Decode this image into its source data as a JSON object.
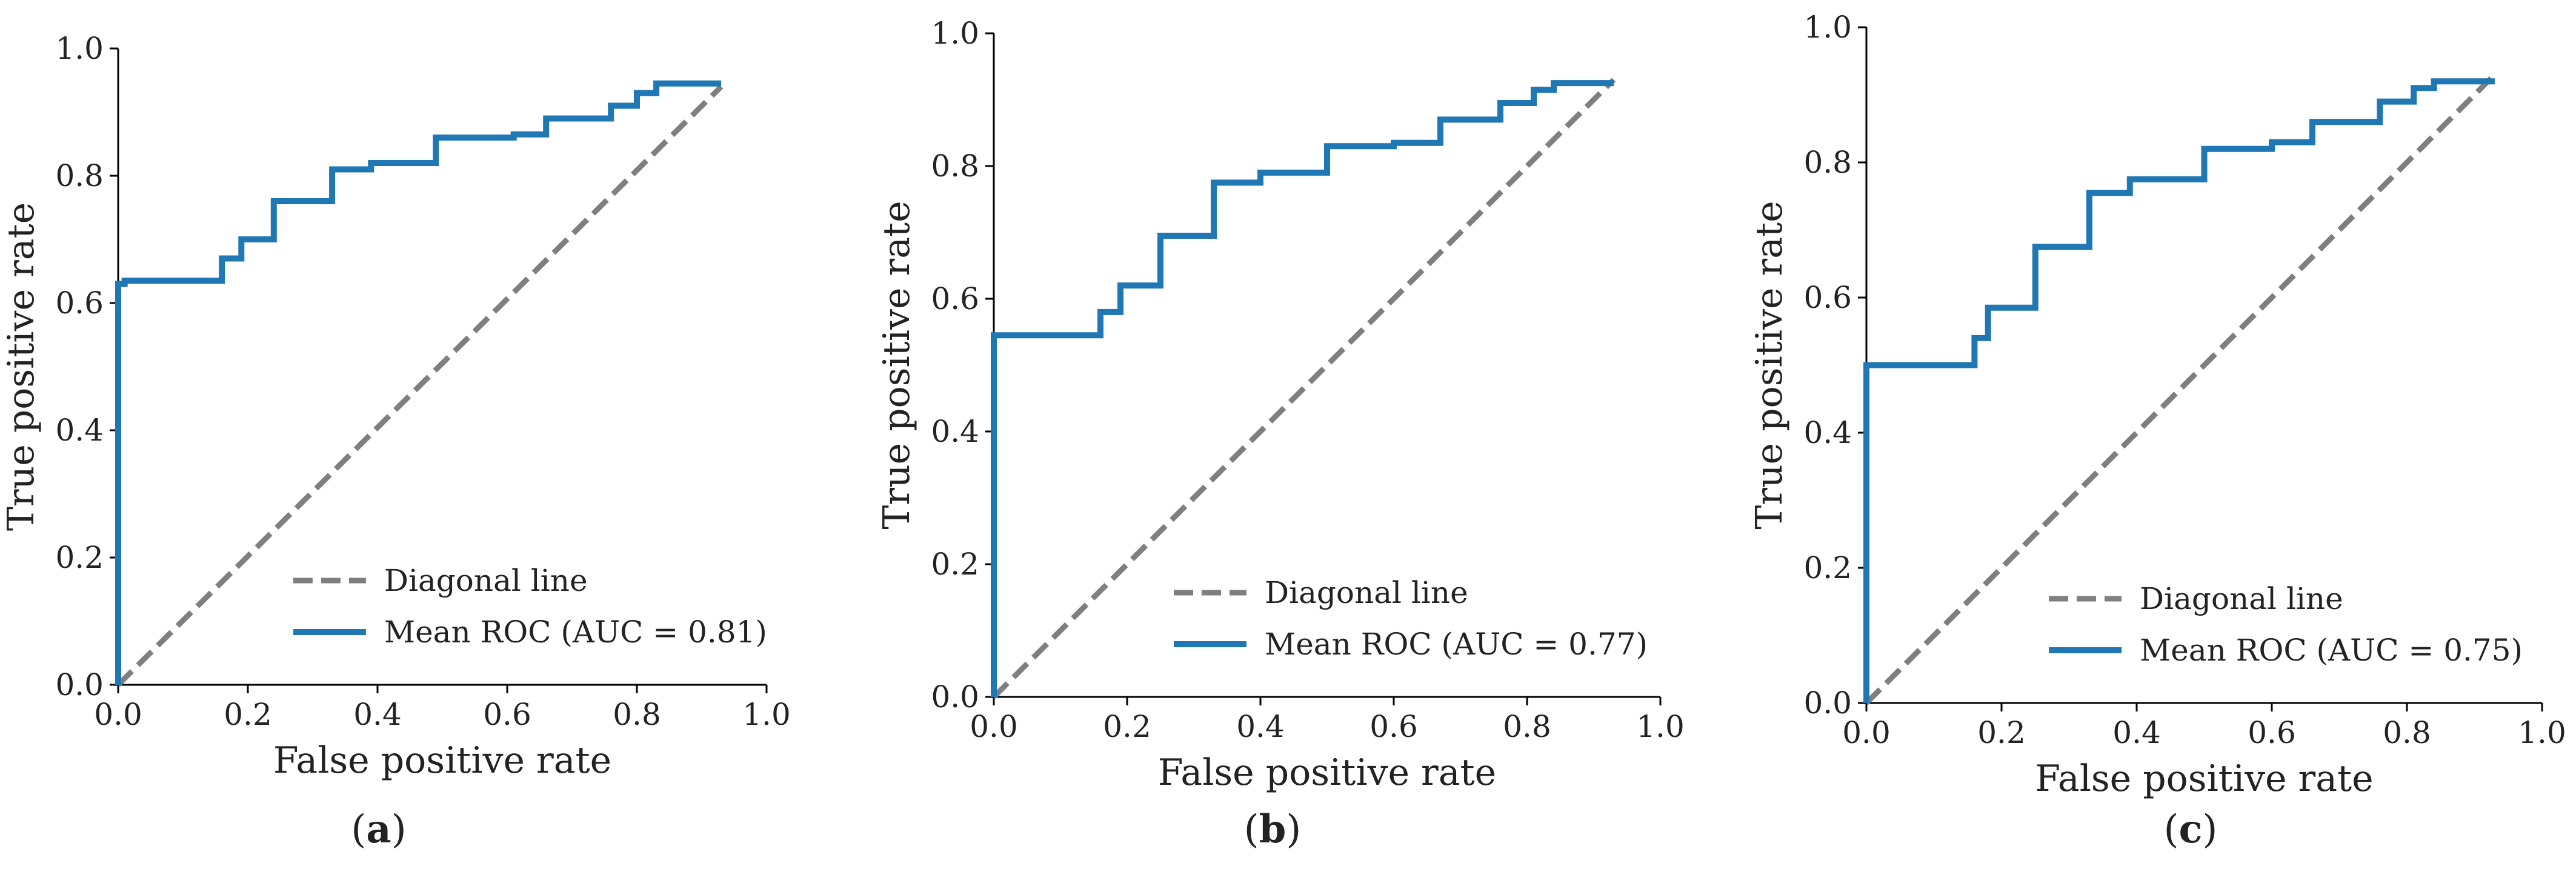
{
  "chart_data": [
    {
      "type": "line",
      "panel": "(a)",
      "caption": {
        "open": "(",
        "letter": "a",
        "close": ")"
      },
      "xlabel": "False positive rate",
      "ylabel": "True positive rate",
      "xlim": [
        0.0,
        1.0
      ],
      "ylim": [
        0.0,
        1.0
      ],
      "xticks": [
        "0.0",
        "0.2",
        "0.4",
        "0.6",
        "0.8",
        "1.0"
      ],
      "yticks": [
        "0.0",
        "0.2",
        "0.4",
        "0.6",
        "0.8",
        "1.0"
      ],
      "grid": false,
      "legend_position": "lower-right",
      "series": [
        {
          "name": "Diagonal line",
          "style": "dashed",
          "color": "#7f7f7f",
          "x": [
            0.0,
            0.93
          ],
          "y": [
            0.0,
            0.94
          ]
        },
        {
          "name": "Mean ROC (AUC = 0.81)",
          "style": "solid",
          "color": "#1f77b4",
          "x": [
            0.0,
            0.0,
            0.01,
            0.01,
            0.16,
            0.16,
            0.19,
            0.19,
            0.24,
            0.24,
            0.33,
            0.33,
            0.39,
            0.39,
            0.49,
            0.49,
            0.61,
            0.61,
            0.66,
            0.66,
            0.76,
            0.76,
            0.8,
            0.8,
            0.83,
            0.83,
            0.93
          ],
          "y": [
            0.0,
            0.63,
            0.63,
            0.635,
            0.635,
            0.67,
            0.67,
            0.7,
            0.7,
            0.76,
            0.76,
            0.81,
            0.81,
            0.82,
            0.82,
            0.86,
            0.86,
            0.865,
            0.865,
            0.89,
            0.89,
            0.91,
            0.91,
            0.93,
            0.93,
            0.945,
            0.945
          ]
        }
      ]
    },
    {
      "type": "line",
      "panel": "(b)",
      "caption": {
        "open": "(",
        "letter": "b",
        "close": ")"
      },
      "xlabel": "False positive rate",
      "ylabel": "True positive rate",
      "xlim": [
        0.0,
        1.0
      ],
      "ylim": [
        0.0,
        1.0
      ],
      "xticks": [
        "0.0",
        "0.2",
        "0.4",
        "0.6",
        "0.8",
        "1.0"
      ],
      "yticks": [
        "0.0",
        "0.2",
        "0.4",
        "0.6",
        "0.8",
        "1.0"
      ],
      "grid": false,
      "legend_position": "lower-right",
      "series": [
        {
          "name": "Diagonal line",
          "style": "dashed",
          "color": "#7f7f7f",
          "x": [
            0.0,
            0.93
          ],
          "y": [
            0.0,
            0.93
          ]
        },
        {
          "name": "Mean ROC (AUC = 0.77)",
          "style": "solid",
          "color": "#1f77b4",
          "x": [
            0.0,
            0.0,
            0.01,
            0.01,
            0.16,
            0.16,
            0.19,
            0.19,
            0.23,
            0.23,
            0.25,
            0.25,
            0.33,
            0.33,
            0.4,
            0.4,
            0.5,
            0.5,
            0.6,
            0.6,
            0.67,
            0.67,
            0.76,
            0.76,
            0.81,
            0.81,
            0.84,
            0.84,
            0.93
          ],
          "y": [
            0.0,
            0.545,
            0.545,
            0.545,
            0.545,
            0.58,
            0.58,
            0.62,
            0.62,
            0.62,
            0.62,
            0.695,
            0.695,
            0.775,
            0.775,
            0.79,
            0.79,
            0.83,
            0.83,
            0.835,
            0.835,
            0.87,
            0.87,
            0.895,
            0.895,
            0.915,
            0.915,
            0.925,
            0.925
          ]
        }
      ]
    },
    {
      "type": "line",
      "panel": "(c)",
      "caption": {
        "open": "(",
        "letter": "c",
        "close": ")"
      },
      "xlabel": "False positive rate",
      "ylabel": "True positive rate",
      "xlim": [
        0.0,
        1.0
      ],
      "ylim": [
        0.0,
        1.0
      ],
      "xticks": [
        "0.0",
        "0.2",
        "0.4",
        "0.6",
        "0.8",
        "1.0"
      ],
      "yticks": [
        "0.0",
        "0.2",
        "0.4",
        "0.6",
        "0.8",
        "1.0"
      ],
      "grid": false,
      "legend_position": "lower-right",
      "series": [
        {
          "name": "Diagonal line",
          "style": "dashed",
          "color": "#7f7f7f",
          "x": [
            0.0,
            0.93
          ],
          "y": [
            0.0,
            0.93
          ]
        },
        {
          "name": "Mean ROC (AUC = 0.75)",
          "style": "solid",
          "color": "#1f77b4",
          "x": [
            0.0,
            0.0,
            0.01,
            0.01,
            0.16,
            0.16,
            0.18,
            0.18,
            0.21,
            0.21,
            0.25,
            0.25,
            0.33,
            0.33,
            0.39,
            0.39,
            0.5,
            0.5,
            0.6,
            0.6,
            0.66,
            0.66,
            0.76,
            0.76,
            0.81,
            0.81,
            0.84,
            0.84,
            0.93
          ],
          "y": [
            0.0,
            0.5,
            0.5,
            0.5,
            0.5,
            0.54,
            0.54,
            0.585,
            0.585,
            0.585,
            0.585,
            0.675,
            0.675,
            0.755,
            0.755,
            0.775,
            0.775,
            0.82,
            0.82,
            0.83,
            0.83,
            0.86,
            0.86,
            0.89,
            0.89,
            0.91,
            0.91,
            0.92,
            0.92
          ]
        }
      ]
    }
  ]
}
